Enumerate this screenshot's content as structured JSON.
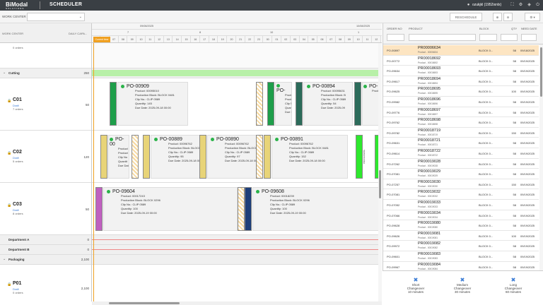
{
  "app": {
    "logo": "BiModal",
    "logo_sub": "SOLUTIONS",
    "title": "SCHEDULER",
    "user": "ozukjkl (1952ixnlx)"
  },
  "filter": {
    "work_center_label": "WORK CENTER",
    "reschedule": "RESCHEDULE"
  },
  "columns": {
    "work_center": "WORK CENTER",
    "daily_cap": "DAILY CAPA..."
  },
  "timeline": {
    "dates": [
      "09/08/2025",
      "10/08/2025"
    ],
    "weeks": [
      "7",
      "8",
      "9",
      "10",
      "1"
    ],
    "hours": [
      "05",
      "06",
      "07",
      "08",
      "09",
      "10",
      "11",
      "12",
      "13",
      "14",
      "15",
      "16",
      "17",
      "18",
      "19",
      "20",
      "21",
      "22",
      "23",
      "00",
      "01",
      "02",
      "03",
      "04",
      "05",
      "06",
      "07",
      "08",
      "09",
      "10",
      "11",
      "12"
    ],
    "now_label": "Current time"
  },
  "left_rows": [
    {
      "type": "stub",
      "sub": "0 orders"
    },
    {
      "type": "group",
      "label": "Cutting",
      "cap": "250"
    },
    {
      "type": "wc",
      "name": "C01",
      "status": "Draft",
      "orders": "7 orders",
      "cap": "50"
    },
    {
      "type": "wc",
      "name": "C02",
      "status": "Draft",
      "orders": "5 orders",
      "cap": "120"
    },
    {
      "type": "wc",
      "name": "C03",
      "status": "Draft",
      "orders": "8 orders",
      "cap": "50"
    },
    {
      "type": "dept",
      "label": "Department A",
      "cap": "0"
    },
    {
      "type": "dept",
      "label": "Department B",
      "cap": "0"
    },
    {
      "type": "group",
      "label": "Packaging",
      "cap": "2,100"
    },
    {
      "type": "wc",
      "name": "P01",
      "status": "Draft",
      "orders": "0 orders",
      "cap": "2,100"
    }
  ],
  "cards": [
    {
      "id": "PO-00909",
      "product": "Product: 00095010",
      "block": "Production Block: BLOCK 0481",
      "clip": "Clip No.: CLIP 0589",
      "qty": "Quantity: 145",
      "due": "Due Date: 2025-09-18 00:00"
    },
    {
      "id": "PO-",
      "product": "Product",
      "block": "Product",
      "clip": "Clip N",
      "qty": "Quan",
      "due": "Due I"
    },
    {
      "id": "PO-00894",
      "product": "Product: 00095631",
      "block": "Production Block: B",
      "clip": "Clip No.: CLIP 0589",
      "qty": "Quantity: 54",
      "due": "Due Date: 2025-09"
    },
    {
      "id": "PO-",
      "product": "Product",
      "block": "",
      "clip": "",
      "qty": "",
      "due": ""
    },
    {
      "id": "PO-00",
      "product": "Product",
      "block": "Product",
      "clip": "Clip No",
      "qty": "Quantit",
      "due": "Due Dat"
    },
    {
      "id": "PO-00889",
      "product": "Product: 00096762",
      "block": "Production Block: BLOCK",
      "clip": "Clip No.: CLIP 0589",
      "qty": "Quantity: 95",
      "due": "Due Date: 2025-09-18 00:00"
    },
    {
      "id": "PO-00890",
      "product": "Product: 00096762",
      "block": "Production Block: BLOCK",
      "clip": "Clip No.: CLIP 0589",
      "qty": "Quantity: 97",
      "due": "Due Date: 2025-09-18 00:00"
    },
    {
      "id": "PO-00891",
      "product": "Product: 00096762",
      "block": "Production Block: BLOCK 0481",
      "clip": "Clip No.: CLIP 0589",
      "qty": "Quantity: 152",
      "due": "Due Date: 2025-09-18 00:00"
    },
    {
      "id": "PO-09604",
      "product": "Product: 00017243",
      "block": "Production Block: BLOCK 0296",
      "clip": "Clip No.: CLIP 0589",
      "qty": "Quantity: 100",
      "due": "Due Date: 2025-09-19 00:00"
    },
    {
      "id": "PO-09608",
      "product": "Product: 00018239",
      "block": "Production Block: BLOCK 0296",
      "clip": "Clip No.: CLIP 0589",
      "qty": "Quantity: 100",
      "due": "Due Date: 2025-09-19 00:00"
    }
  ],
  "bars": {
    "label": "PROCESSING"
  },
  "orders": {
    "headers": {
      "order_no": "ORDER NO",
      "product": "PRODUCT",
      "block": "BLOCK",
      "qty": "QTY",
      "need_date": "NEED DATE"
    },
    "rows": [
      {
        "on": "PO-00897",
        "pr": "PR00006634",
        "sub": "Product - 00006634",
        "blk": "BLOCK 0...",
        "qty": "58",
        "nd": "09/18/2025",
        "hl": true
      },
      {
        "on": "PO-00772",
        "pr": "PR00018692",
        "sub": "Product - 00018692",
        "blk": "BLOCK 0...",
        "qty": "58",
        "nd": "09/19/2025"
      },
      {
        "on": "PO-09634",
        "pr": "PR00018693",
        "sub": "Product - 00018693",
        "blk": "BLOCK 0...",
        "qty": "58",
        "nd": "09/19/2025"
      },
      {
        "on": "PO-09617",
        "pr": "PR00018694",
        "sub": "Product - 00018694",
        "blk": "BLOCK 0...",
        "qty": "58",
        "nd": "09/19/2025"
      },
      {
        "on": "PO-09625",
        "pr": "PR00018695",
        "sub": "Product - 00018695",
        "blk": "BLOCK 0...",
        "qty": "100",
        "nd": "09/19/2025"
      },
      {
        "on": "PO-09982",
        "pr": "PR00018696",
        "sub": "Product - 00018696",
        "blk": "BLOCK 0...",
        "qty": "58",
        "nd": "09/19/2025"
      },
      {
        "on": "PO-09776",
        "pr": "PR00018697",
        "sub": "Product - 00018697",
        "blk": "BLOCK 0...",
        "qty": "58",
        "nd": "09/19/2025"
      },
      {
        "on": "PO-09762",
        "pr": "PR00018698",
        "sub": "Product - 00018698",
        "blk": "BLOCK 0...",
        "qty": "58",
        "nd": "09/19/2025"
      },
      {
        "on": "PO-09782",
        "pr": "PR00018719",
        "sub": "Product - 00018719",
        "blk": "BLOCK 0...",
        "qty": "150",
        "nd": "09/19/2025"
      },
      {
        "on": "PO-09631",
        "pr": "PR00018721",
        "sub": "Product - 00018721",
        "blk": "BLOCK 0...",
        "qty": "58",
        "nd": "09/19/2025"
      },
      {
        "on": "PO-09614",
        "pr": "PR00018722",
        "sub": "Product - 00018722",
        "blk": "BLOCK 0...",
        "qty": "58",
        "nd": "09/19/2025"
      },
      {
        "on": "PO-07262",
        "pr": "PR00019028",
        "sub": "Product - 00019028",
        "blk": "BLOCK 0...",
        "qty": "58",
        "nd": "09/19/2025"
      },
      {
        "on": "PO-07081",
        "pr": "PR00019029",
        "sub": "Product - 00019029",
        "blk": "BLOCK 0...",
        "qty": "58",
        "nd": "09/19/2025"
      },
      {
        "on": "PO-07257",
        "pr": "PR00019030",
        "sub": "Product - 00019030",
        "blk": "BLOCK 0...",
        "qty": "150",
        "nd": "09/19/2025"
      },
      {
        "on": "PO-07081",
        "pr": "PR00019032",
        "sub": "Product - 00019032",
        "blk": "BLOCK 0...",
        "qty": "58",
        "nd": "09/19/2025"
      },
      {
        "on": "PO-07052",
        "pr": "PR00019033",
        "sub": "Product - 00019033",
        "blk": "BLOCK 0...",
        "qty": "58",
        "nd": "09/19/2025"
      },
      {
        "on": "PO-07066",
        "pr": "PR00019034",
        "sub": "Product - 00019034",
        "blk": "BLOCK 0...",
        "qty": "58",
        "nd": "09/19/2025"
      },
      {
        "on": "PO-09628",
        "pr": "PR00019080",
        "sub": "Product - 00019080",
        "blk": "BLOCK 0...",
        "qty": "58",
        "nd": "09/19/2025"
      },
      {
        "on": "PO-09626",
        "pr": "PR00019081",
        "sub": "Product - 00019081",
        "blk": "BLOCK 0...",
        "qty": "100",
        "nd": "09/19/2025"
      },
      {
        "on": "PO-09972",
        "pr": "PR00019082",
        "sub": "Product - 00019082",
        "blk": "BLOCK 0...",
        "qty": "58",
        "nd": "09/19/2025"
      },
      {
        "on": "PO-09601",
        "pr": "PR00019083",
        "sub": "Product - 00019083",
        "blk": "BLOCK 0...",
        "qty": "58",
        "nd": "09/19/2025"
      },
      {
        "on": "PO-09967",
        "pr": "PR00019084",
        "sub": "Product - 00019084",
        "blk": "BLOCK 0...",
        "qty": "58",
        "nd": "09/19/2025"
      }
    ]
  },
  "legend": [
    {
      "title": "Short",
      "sub1": "Changeover",
      "sub2": "10 minutes"
    },
    {
      "title": "Medium",
      "sub1": "Changeover",
      "sub2": "30 minutes"
    },
    {
      "title": "Long",
      "sub1": "Changeover",
      "sub2": "60 minutes"
    }
  ],
  "colors": {
    "accent": "#3a7bd5",
    "processing_green": "#1e9e4a",
    "now": "#f0a020",
    "cutting_bar": "#b8f0a8"
  }
}
